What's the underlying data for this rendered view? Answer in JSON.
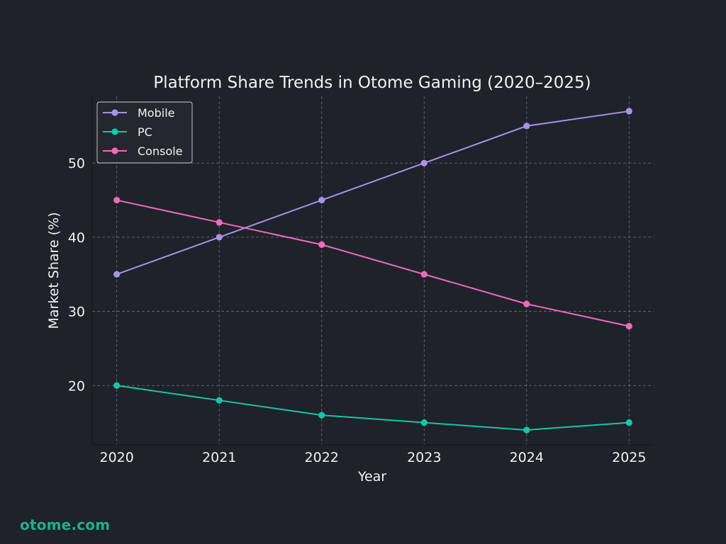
{
  "chart_data": {
    "type": "line",
    "title": "Platform Share Trends in Otome Gaming (2020–2025)",
    "xlabel": "Year",
    "ylabel": "Market Share (%)",
    "x": [
      2020,
      2021,
      2022,
      2023,
      2024,
      2025
    ],
    "xticks": [
      "2020",
      "2021",
      "2022",
      "2023",
      "2024",
      "2025"
    ],
    "yticks": [
      20,
      30,
      40,
      50
    ],
    "ylim": [
      12,
      59
    ],
    "grid": true,
    "legend_position": "top-left",
    "series": [
      {
        "name": "Mobile",
        "values": [
          35,
          40,
          45,
          50,
          55,
          57
        ],
        "color": "#a893e6"
      },
      {
        "name": "PC",
        "values": [
          20,
          18,
          16,
          15,
          14,
          15
        ],
        "color": "#15c7a5"
      },
      {
        "name": "Console",
        "values": [
          45,
          42,
          39,
          35,
          31,
          28
        ],
        "color": "#f06bb9"
      }
    ]
  },
  "background_color": "#1e222a",
  "watermark": "otome.com",
  "watermark_color": "#1fae8f"
}
